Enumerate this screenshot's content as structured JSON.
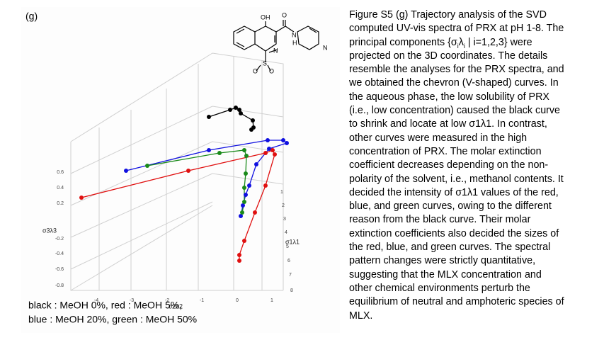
{
  "figure": {
    "panel_label": "(g)",
    "z_axis": {
      "label": "σ3λ3",
      "ticks": [
        "0.6",
        "0.4",
        "0.2",
        "-0.2",
        "-0.4",
        "-0.6",
        "-0.8"
      ]
    },
    "x_axis": {
      "label": "σ1λ1",
      "ticks": [
        "1",
        "2",
        "3",
        "4",
        "5",
        "6",
        "7",
        "8"
      ]
    },
    "y_axis": {
      "label": "σ2λ2",
      "ticks": [
        "-4",
        "-3",
        "-2",
        "-1",
        "0",
        "1"
      ]
    },
    "molecule": {
      "labels": [
        "OH",
        "O",
        "N",
        "H",
        "N",
        "S",
        "N",
        "O",
        "O"
      ]
    },
    "legend": [
      "black : MeOH 0%, red : MeOH 5%,",
      "blue : MeOH 20%, green : MeOH 50%"
    ]
  },
  "caption": {
    "lines": [
      "Figure S5 (g) Trajectory analysis of the SVD",
      "computed UV-vis spectra of PRX at pH 1-8. The",
      [
        "principal components {σ",
        "i",
        "λ",
        "i",
        " | i=1,2,3} were"
      ],
      "projected on the 3D coordinates. The details",
      "resemble the analyses for the PRX spectra, and",
      "we obtained the chevron (V-shaped) curves. In",
      "the aqueous phase, the low solubility of PRX",
      "(i.e., low concentration) caused the black curve",
      "to shrink and locate at low σ1λ1. In contrast,",
      "other curves were measured in the high",
      "concentration of PRX. The molar extinction",
      "coefficient decreases depending on the non-",
      "polarity of the solvent, i.e., methanol contents. It",
      "decided the intensity of σ1λ1 values of the red,",
      "blue, and green curves, owing to the different",
      "reason from the black curve. Their molar",
      "extinction coefficients also decided the sizes of",
      "the red, blue, and green curves. The spectral",
      "pattern changes were strictly quantitative,",
      "suggesting that the MLX concentration and",
      "other chemical environments perturb the",
      "equilibrium of neutral and amphoteric species of",
      "MLX."
    ]
  }
}
